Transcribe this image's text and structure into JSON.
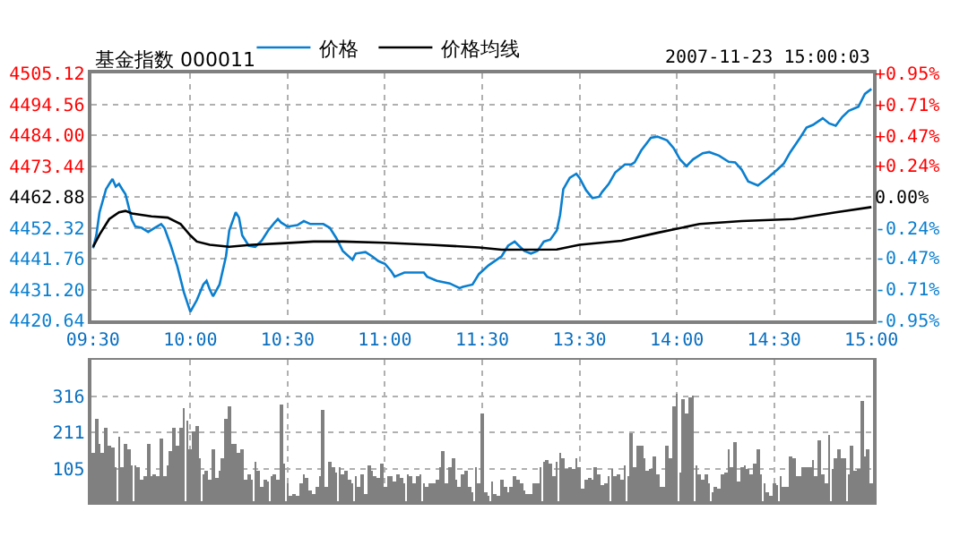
{
  "chart_data": [
    {
      "type": "line",
      "title": "基金指数 000011",
      "annotations": [
        "2007-11-23 15:00:03"
      ],
      "legend": "top",
      "grid": true,
      "line_style": "solid",
      "categories": [
        "09:30",
        null,
        null,
        null,
        null,
        null,
        null,
        null,
        null,
        null,
        null,
        null,
        null,
        null,
        null,
        null,
        null,
        null,
        null,
        null,
        null,
        null,
        null,
        null,
        null,
        null,
        null,
        null,
        null,
        null,
        "10:00",
        null,
        null,
        null,
        null,
        null,
        null,
        null,
        null,
        null,
        null,
        null,
        null,
        null,
        null,
        null,
        null,
        null,
        null,
        null,
        null,
        null,
        null,
        null,
        null,
        null,
        null,
        null,
        null,
        null,
        "10:30",
        null,
        null,
        null,
        null,
        null,
        null,
        null,
        null,
        null,
        null,
        null,
        null,
        null,
        null,
        null,
        null,
        null,
        null,
        null,
        null,
        null,
        null,
        null,
        null,
        null,
        null,
        null,
        null,
        null,
        "11:00",
        null,
        null,
        null,
        null,
        null,
        null,
        null,
        null,
        null,
        null,
        null,
        null,
        null,
        null,
        null,
        null,
        null,
        null,
        null,
        null,
        null,
        null,
        null,
        null,
        null,
        null,
        null,
        null,
        null,
        "11:30",
        null,
        null,
        null,
        null,
        null,
        null,
        null,
        null,
        null,
        null,
        null,
        null,
        null,
        null,
        null,
        null,
        null,
        null,
        null,
        null,
        null,
        null,
        null,
        null,
        null,
        null,
        null,
        null,
        null,
        "13:30",
        null,
        null,
        null,
        null,
        null,
        null,
        null,
        null,
        null,
        null,
        null,
        null,
        null,
        null,
        null,
        null,
        null,
        null,
        null,
        null,
        null,
        null,
        null,
        null,
        null,
        null,
        null,
        null,
        null,
        "14:00",
        null,
        null,
        null,
        null,
        null,
        null,
        null,
        null,
        null,
        null,
        null,
        null,
        null,
        null,
        null,
        null,
        null,
        null,
        null,
        null,
        null,
        null,
        null,
        null,
        null,
        null,
        null,
        null,
        null,
        "14:30",
        null,
        null,
        null,
        null,
        null,
        null,
        null,
        null,
        null,
        null,
        null,
        null,
        null,
        null,
        null,
        null,
        null,
        null,
        null,
        null,
        null,
        null,
        null,
        null,
        null,
        null,
        null,
        null,
        null,
        "15:00"
      ],
      "ylim": [
        4420.64,
        4505.12
      ],
      "yticks": [
        4420.64,
        {
          "value": 4431.2,
          "label": "4431.20"
        },
        4441.76,
        4452.32,
        4462.88,
        4473.44,
        {
          "value": 4484,
          "label": "4484.00"
        },
        4494.56,
        4505.12
      ],
      "y2lim": [
        -0.95,
        0.95
      ],
      "y2ticks": [
        {
          "value": -0.95,
          "label": "-0.95%"
        },
        {
          "value": -0.71,
          "label": "-0.71%"
        },
        {
          "value": -0.47,
          "label": "-0.47%"
        },
        {
          "value": -0.24,
          "label": "-0.24%"
        },
        {
          "value": 0,
          "label": "0.00%"
        },
        {
          "value": 0.24,
          "label": "+0.24%"
        },
        {
          "value": 0.47,
          "label": "+0.47%"
        },
        {
          "value": 0.71,
          "label": "+0.71%"
        },
        {
          "value": 0.95,
          "label": "+0.95%"
        }
      ],
      "series": [
        {
          "name": "价格",
          "color": "#0a7fcf",
          "values": [
            4445.3,
            4449.7,
            4457.6,
            null,
            4465.5,
            4467.3,
            4469.0,
            4466.4,
            4467.3,
            4465.5,
            4463.8,
            4459.4,
            4455.0,
            4452.8,
            null,
            4452.3,
            null,
            4450.9,
            null,
            4452.3,
            null,
            4453.6,
            4452.3,
            null,
            4446.2,
            null,
            4439.1,
            null,
            4430.3,
            null,
            4423.6,
            null,
            4427.6,
            null,
            4432.9,
            4434.2,
            4431.2,
            4428.9,
            null,
            4432.9,
            null,
            4442.6,
            4451.4,
            null,
            4457.6,
            4455.8,
            4449.7,
            null,
            4446.2,
            null,
            4445.8,
            null,
            4447.9,
            null,
            4451.4,
            null,
            4454.1,
            4455.3,
            4454.1,
            null,
            4452.7,
            null,
            null,
            4453.2,
            null,
            4454.6,
            null,
            4453.6,
            null,
            4453.6,
            null,
            4453.6,
            null,
            4452.3,
            null,
            4448.8,
            null,
            4444.4,
            null,
            null,
            4441.4,
            4443.5,
            null,
            null,
            4444.0,
            null,
            4442.6,
            null,
            4440.9,
            null,
            4440.0,
            null,
            4437.4,
            4435.6,
            null,
            null,
            4437.0,
            null,
            null,
            4437.0,
            null,
            null,
            4437.0,
            4435.6,
            null,
            null,
            4434.2,
            null,
            null,
            null,
            4433.3,
            null,
            null,
            4431.7,
            4432.1,
            null,
            null,
            4432.9,
            null,
            4436.5,
            null,
            null,
            4439.5,
            null,
            null,
            null,
            4442.6,
            null,
            4446.2,
            null,
            4447.6,
            4446.5,
            null,
            4444.4,
            null,
            4443.5,
            null,
            4444.4,
            null,
            4447.6,
            null,
            4448.3,
            null,
            4451.4,
            4456.7,
            4465.5,
            null,
            4469.4,
            null,
            4470.8,
            4469.4,
            null,
            4465.2,
            null,
            4462.5,
            null,
            4462.9,
            4464.6,
            null,
            4467.3,
            null,
            4471.2,
            null,
            null,
            4474.0,
            null,
            4474.0,
            4474.7,
            null,
            4478.7,
            null,
            null,
            4483.1,
            null,
            4483.5,
            null,
            null,
            4482.2,
            null,
            4479.6,
            null,
            4475.7,
            null,
            4473.4,
            null,
            4475.7,
            null,
            null,
            4477.8,
            null,
            4478.2,
            null,
            null,
            4477.0,
            null,
            null,
            4474.9,
            null,
            4474.7,
            null,
            4472.2,
            null,
            4468.2,
            null,
            null,
            4466.8,
            null,
            null,
            4469.4,
            null,
            null,
            4472.2,
            null,
            4474.3,
            null,
            4478.2,
            null,
            null,
            4483.1,
            null,
            4486.6,
            null,
            4487.5,
            null,
            null,
            4489.8,
            null,
            4488.0,
            null,
            4487.2,
            null,
            4490.2,
            null,
            4492.3,
            null,
            null,
            4493.7,
            null,
            4498.1,
            null,
            4499.8
          ]
        },
        {
          "name": "价格均线",
          "color": "#000000",
          "values": [
            4445.8,
            null,
            4450.0,
            null,
            null,
            4455.3,
            null,
            null,
            4457.6,
            null,
            4458.1,
            null,
            4457.2,
            null,
            null,
            null,
            null,
            null,
            4456.2,
            null,
            null,
            null,
            null,
            4455.8,
            null,
            null,
            null,
            4453.6,
            null,
            null,
            4449.7,
            null,
            4447.6,
            null,
            null,
            null,
            4446.5,
            null,
            null,
            null,
            null,
            null,
            4445.8,
            null,
            null,
            null,
            null,
            null,
            null,
            4446.5,
            null,
            null,
            null,
            null,
            null,
            null,
            null,
            null,
            4447.0,
            null,
            null,
            null,
            null,
            null,
            null,
            null,
            null,
            null,
            4447.6,
            null,
            null,
            null,
            null,
            null,
            null,
            null,
            null,
            4447.6,
            null,
            null,
            null,
            null,
            null,
            null,
            null,
            null,
            null,
            null,
            null,
            null,
            4447.2,
            null,
            null,
            null,
            null,
            null,
            null,
            null,
            null,
            null,
            null,
            null,
            null,
            null,
            4446.5,
            null,
            null,
            null,
            null,
            null,
            null,
            null,
            null,
            null,
            null,
            null,
            null,
            null,
            null,
            4445.6,
            null,
            null,
            null,
            null,
            null,
            null,
            4444.8,
            null,
            null,
            null,
            null,
            null,
            null,
            null,
            null,
            null,
            null,
            null,
            null,
            null,
            null,
            null,
            null,
            4444.9,
            null,
            null,
            null,
            null,
            null,
            null,
            4446.5,
            null,
            null,
            null,
            null,
            null,
            null,
            null,
            null,
            null,
            null,
            null,
            null,
            4447.9,
            null,
            null,
            null,
            null,
            null,
            null,
            null,
            null,
            null,
            null,
            4450.6,
            null,
            null,
            null,
            null,
            null,
            null,
            null,
            null,
            null,
            null,
            null,
            null,
            4453.6,
            null,
            null,
            null,
            null,
            null,
            null,
            null,
            null,
            null,
            null,
            null,
            null,
            4454.6,
            null,
            null,
            null,
            null,
            null,
            null,
            null,
            null,
            null,
            null,
            null,
            null,
            null,
            null,
            null,
            4455.3,
            null,
            null,
            null,
            null,
            null,
            null,
            null,
            null,
            null,
            null,
            null,
            null,
            4457.6,
            null,
            null,
            null,
            null,
            null,
            null,
            null,
            null,
            null,
            null,
            4459.4
          ]
        }
      ]
    },
    {
      "type": "bar",
      "grid": true,
      "tick_labels": "y",
      "categories": [
        null,
        null,
        null,
        null,
        null,
        null,
        null,
        null,
        null,
        null,
        null,
        null,
        null,
        null,
        null,
        null,
        null,
        null,
        null,
        null,
        null,
        null,
        null,
        null,
        null,
        null,
        null,
        null,
        null,
        null,
        null,
        null,
        null,
        null,
        null,
        null,
        null,
        null,
        null,
        null,
        null,
        null,
        null,
        null,
        null,
        null,
        null,
        null,
        null,
        null,
        null,
        null,
        null,
        null,
        null,
        null,
        null,
        null,
        null,
        null,
        null,
        null,
        null,
        null,
        null,
        null,
        null,
        null,
        null,
        null,
        null,
        null,
        null,
        null,
        null,
        null,
        null,
        null,
        null,
        null,
        null,
        null,
        null,
        null,
        null,
        null,
        null,
        null,
        null,
        null,
        null,
        null,
        null,
        null,
        null,
        null,
        null,
        null,
        null,
        null,
        null,
        null,
        null,
        null,
        null,
        null,
        null,
        null,
        null,
        null,
        null,
        null,
        null,
        null,
        null,
        null,
        null,
        null,
        null,
        null,
        null,
        null,
        null,
        null,
        null,
        null,
        null,
        null,
        null,
        null,
        null,
        null,
        null,
        null,
        null,
        null,
        null,
        null,
        null,
        null,
        null,
        null,
        null,
        null,
        null,
        null,
        null,
        null,
        null,
        null,
        null,
        null,
        null,
        null,
        null,
        null,
        null,
        null,
        null,
        null,
        null,
        null,
        null,
        null,
        null,
        null,
        null,
        null,
        null,
        null,
        null,
        null,
        null,
        null,
        null,
        null,
        null,
        null,
        null,
        null,
        null,
        null,
        null,
        null,
        null,
        null,
        null,
        null,
        null,
        null,
        null,
        null,
        null,
        null,
        null,
        null,
        null,
        null,
        null,
        null,
        null,
        null,
        null,
        null,
        null,
        null,
        null,
        null,
        null,
        null,
        null,
        null,
        null,
        null,
        null,
        null,
        null,
        null,
        null,
        null,
        null,
        null,
        null,
        null,
        null,
        null,
        null,
        null,
        null,
        null,
        null,
        null,
        null,
        null,
        null,
        null,
        null,
        null,
        null,
        null,
        null
      ],
      "ylim": [
        12,
        422
      ],
      "yticks": [
        105,
        211,
        316
      ],
      "color": "#808080",
      "values": [
        153,
        250,
        180,
        153,
        224,
        171,
        167,
        113,
        197,
        109,
        180,
        162,
        118,
        118,
        109,
        74,
        83,
        176,
        86,
        92,
        83,
        192,
        83,
        118,
        157,
        227,
        174,
        227,
        280,
        245,
        165,
        215,
        229,
        136,
        92,
        100,
        74,
        162,
        79,
        100,
        136,
        250,
        289,
        180,
        176,
        153,
        165,
        74,
        92,
        74,
        127,
        100,
        56,
        74,
        69,
        83,
        92,
        74,
        294,
        121,
        62,
        30,
        33,
        30,
        65,
        90,
        77,
        44,
        33,
        51,
        83,
        276,
        51,
        127,
        113,
        95,
        109,
        92,
        100,
        74,
        62,
        83,
        51,
        88,
        33,
        114,
        100,
        83,
        77,
        121,
        56,
        86,
        86,
        69,
        92,
        77,
        65,
        92,
        86,
        65,
        83,
        92,
        65,
        56,
        65,
        65,
        74,
        109,
        157,
        65,
        109,
        136,
        74,
        56,
        92,
        100,
        56,
        39,
        109,
        62,
        268,
        39,
        26,
        69,
        33,
        30,
        74,
        56,
        39,
        51,
        83,
        74,
        65,
        44,
        33,
        33,
        62,
        62,
        109,
        127,
        132,
        121,
        86,
        127,
        150,
        136,
        104,
        109,
        106,
        139,
        113,
        48,
        74,
        77,
        74,
        113,
        92,
        60,
        65,
        83,
        104,
        86,
        92,
        74,
        114,
        83,
        209,
        109,
        174,
        174,
        136,
        100,
        104,
        144,
        90,
        51,
        56,
        174,
        136,
        285,
        324,
        97,
        308,
        264,
        312,
        320,
        114,
        92,
        74,
        92,
        65,
        39,
        56,
        48,
        92,
        97,
        162,
        113,
        185,
        69,
        109,
        118,
        104,
        92,
        121,
        165,
        92,
        65,
        39,
        26,
        62,
        60,
        83,
        51,
        51,
        144,
        136,
        83,
        83,
        109,
        109,
        109,
        132,
        86,
        188,
        92,
        65,
        206,
        104,
        136,
        162,
        139,
        136,
        88,
        171,
        100,
        104,
        303,
        144,
        162,
        62
      ]
    }
  ]
}
